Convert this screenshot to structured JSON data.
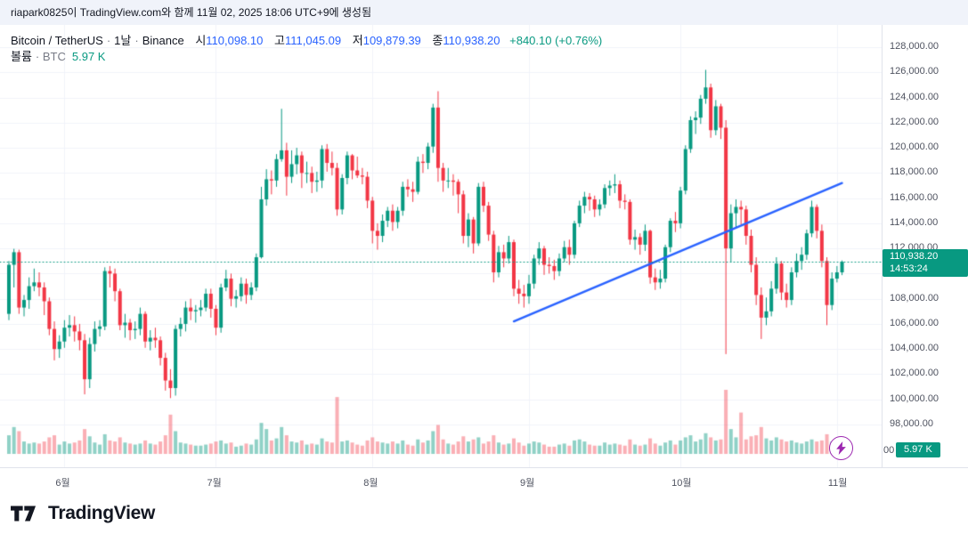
{
  "attribution": {
    "text": "riapark0825이 TradingView.com와 함께 11월 02, 2025 18:06 UTC+9에 생성됨"
  },
  "legend": {
    "symbol": "Bitcoin / TetherUS",
    "sep1": "·",
    "interval": "1날",
    "sep2": "·",
    "exchange": "Binance",
    "open_label": "시",
    "open_value": "110,098.10",
    "high_label": "고",
    "high_value": "111,045.09",
    "low_label": "저",
    "low_value": "109,879.39",
    "close_label": "종",
    "close_value": "110,938.20",
    "change": "+840.10 (+0.76%)",
    "volume_label": "볼륨",
    "volume_unit": "· BTC",
    "volume_value": "5.97 K"
  },
  "badges": {
    "price": "110,938.20",
    "countdown": "14:53:24",
    "volume": "5.97 K",
    "clipped_scale_text": "00"
  },
  "footer": {
    "brand": "TradingView"
  },
  "chart_data": {
    "type": "candlestick",
    "title": "Bitcoin / TetherUS · 1날 · Binance",
    "last_close": 110938.2,
    "last_candle": {
      "open": 110098.1,
      "high": 111045.09,
      "low": 109879.39,
      "close": 110938.2,
      "change": "+840.10 (+0.76%)",
      "volume_btc": 5.97,
      "countdown": "14:53:24"
    },
    "y_axis": {
      "min": 98000,
      "max": 128000,
      "step": 2000,
      "ticks": [
        {
          "p": 128000,
          "label": "128,000.00"
        },
        {
          "p": 126000,
          "label": "126,000.00"
        },
        {
          "p": 124000,
          "label": "124,000.00"
        },
        {
          "p": 122000,
          "label": "122,000.00"
        },
        {
          "p": 120000,
          "label": "120,000.00"
        },
        {
          "p": 118000,
          "label": "118,000.00"
        },
        {
          "p": 116000,
          "label": "116,000.00"
        },
        {
          "p": 114000,
          "label": "114,000.00"
        },
        {
          "p": 112000,
          "label": "112,000.00"
        },
        {
          "p": 110000,
          "label": "110,000.00"
        },
        {
          "p": 108000,
          "label": "108,000.00"
        },
        {
          "p": 106000,
          "label": "106,000.00"
        },
        {
          "p": 104000,
          "label": "104,000.00"
        },
        {
          "p": 102000,
          "label": "102,000.00"
        },
        {
          "p": 100000,
          "label": "100,000.00"
        },
        {
          "p": 98000,
          "label": "98,000.00"
        }
      ]
    },
    "x_axis": {
      "ticks": [
        {
          "index": 11,
          "label": "6월"
        },
        {
          "index": 41,
          "label": "7월"
        },
        {
          "index": 72,
          "label": "8월"
        },
        {
          "index": 103,
          "label": "9월"
        },
        {
          "index": 133,
          "label": "10월"
        },
        {
          "index": 164,
          "label": "11월"
        }
      ]
    },
    "trendline": {
      "from_index": 100,
      "from_price": 106200,
      "to_index": 165,
      "to_price": 117200,
      "color": "#2962ff"
    },
    "colors": {
      "up": "#089981",
      "down": "#f23645",
      "vol_up": "rgba(8,153,129,0.45)",
      "vol_down": "rgba(242,54,69,0.4)",
      "grid": "#f0f3fa",
      "trend": "#2962ff",
      "last_price_line": "#089981",
      "badge_bg": "#089981",
      "legend_value": "#2962ff",
      "change": "#089981"
    },
    "candles": [
      [
        106800,
        111000,
        106300,
        110700
      ],
      [
        110700,
        111970,
        108900,
        111700
      ],
      [
        111700,
        111900,
        106800,
        107300
      ],
      [
        107300,
        108300,
        106600,
        107900
      ],
      [
        107900,
        109700,
        107200,
        109000
      ],
      [
        109000,
        110400,
        108600,
        109300
      ],
      [
        109300,
        110100,
        108200,
        108900
      ],
      [
        108900,
        109300,
        106700,
        107800
      ],
      [
        107800,
        108100,
        105100,
        105600
      ],
      [
        105600,
        106200,
        103100,
        104000
      ],
      [
        104000,
        105100,
        103300,
        104600
      ],
      [
        104600,
        106300,
        104100,
        105700
      ],
      [
        105700,
        106700,
        105000,
        105900
      ],
      [
        105900,
        106600,
        104600,
        105400
      ],
      [
        105400,
        106000,
        103900,
        104700
      ],
      [
        104700,
        105200,
        100400,
        101600
      ],
      [
        101600,
        104900,
        100900,
        104400
      ],
      [
        104400,
        106200,
        103800,
        105600
      ],
      [
        105600,
        106300,
        105000,
        105800
      ],
      [
        105800,
        110500,
        105500,
        110200
      ],
      [
        110200,
        110600,
        108900,
        110000
      ],
      [
        110000,
        110400,
        107800,
        108600
      ],
      [
        108600,
        108800,
        105500,
        105900
      ],
      [
        105900,
        106800,
        104900,
        106100
      ],
      [
        106100,
        106400,
        104700,
        105500
      ],
      [
        105500,
        106200,
        104800,
        105600
      ],
      [
        105600,
        107300,
        105100,
        106800
      ],
      [
        106800,
        107000,
        104100,
        104600
      ],
      [
        104600,
        105500,
        103900,
        104900
      ],
      [
        104900,
        105700,
        104100,
        104700
      ],
      [
        104700,
        105000,
        102700,
        103300
      ],
      [
        103300,
        103700,
        100700,
        101500
      ],
      [
        101500,
        102400,
        100100,
        100900
      ],
      [
        100900,
        105900,
        100300,
        105600
      ],
      [
        105600,
        106500,
        105000,
        106000
      ],
      [
        106000,
        107800,
        105400,
        107300
      ],
      [
        107300,
        108000,
        106300,
        107000
      ],
      [
        107000,
        107500,
        106100,
        107100
      ],
      [
        107100,
        107900,
        106600,
        107300
      ],
      [
        107300,
        108800,
        107000,
        108400
      ],
      [
        108400,
        108800,
        106500,
        107200
      ],
      [
        107200,
        107500,
        105100,
        105700
      ],
      [
        105700,
        109200,
        105300,
        108900
      ],
      [
        108900,
        110300,
        108600,
        109600
      ],
      [
        109600,
        110000,
        107400,
        108000
      ],
      [
        108000,
        108700,
        107300,
        108200
      ],
      [
        108200,
        109700,
        107800,
        109200
      ],
      [
        109200,
        109600,
        107600,
        108300
      ],
      [
        108300,
        109300,
        107900,
        108900
      ],
      [
        108900,
        111600,
        108600,
        111300
      ],
      [
        111300,
        116900,
        111200,
        115900
      ],
      [
        115900,
        118300,
        115400,
        117500
      ],
      [
        117500,
        118200,
        116300,
        117400
      ],
      [
        117400,
        119500,
        116900,
        119100
      ],
      [
        119100,
        123100,
        118900,
        119800
      ],
      [
        119800,
        120400,
        116200,
        117700
      ],
      [
        117700,
        119800,
        117200,
        118700
      ],
      [
        118700,
        120000,
        117900,
        119400
      ],
      [
        119400,
        119700,
        116800,
        118000
      ],
      [
        118000,
        118900,
        117200,
        118000
      ],
      [
        118000,
        118500,
        116400,
        117300
      ],
      [
        117300,
        118100,
        116500,
        117400
      ],
      [
        117400,
        120200,
        116800,
        119900
      ],
      [
        119900,
        120300,
        118100,
        118800
      ],
      [
        118800,
        119700,
        117800,
        118400
      ],
      [
        118400,
        118800,
        114600,
        115100
      ],
      [
        115100,
        117900,
        114700,
        117600
      ],
      [
        117600,
        119700,
        117100,
        119400
      ],
      [
        119400,
        119500,
        117500,
        118200
      ],
      [
        118200,
        119300,
        117600,
        117800
      ],
      [
        117800,
        118400,
        117100,
        117700
      ],
      [
        117700,
        118100,
        115200,
        115800
      ],
      [
        115800,
        116100,
        112400,
        113400
      ],
      [
        113400,
        114000,
        111900,
        113000
      ],
      [
        113000,
        114700,
        112500,
        114200
      ],
      [
        114200,
        115300,
        113700,
        115000
      ],
      [
        115000,
        115500,
        113400,
        114100
      ],
      [
        114100,
        115300,
        113600,
        115000
      ],
      [
        115000,
        117300,
        114600,
        116900
      ],
      [
        116900,
        117500,
        116100,
        116700
      ],
      [
        116700,
        117300,
        115700,
        116500
      ],
      [
        116500,
        119300,
        116300,
        118900
      ],
      [
        118900,
        119500,
        118000,
        118800
      ],
      [
        118800,
        120400,
        118300,
        120100
      ],
      [
        120100,
        123500,
        119600,
        123200
      ],
      [
        123200,
        124500,
        117300,
        118400
      ],
      [
        118400,
        118800,
        116500,
        117400
      ],
      [
        117400,
        118400,
        116800,
        117400
      ],
      [
        117400,
        117900,
        116200,
        117300
      ],
      [
        117300,
        117500,
        114800,
        116300
      ],
      [
        116300,
        116600,
        112400,
        113000
      ],
      [
        113000,
        114800,
        112100,
        114300
      ],
      [
        114300,
        114500,
        111600,
        112400
      ],
      [
        112400,
        117200,
        112200,
        116900
      ],
      [
        116900,
        117300,
        114900,
        115400
      ],
      [
        115400,
        115700,
        112600,
        113100
      ],
      [
        113100,
        113400,
        109300,
        110100
      ],
      [
        110100,
        112200,
        109700,
        111700
      ],
      [
        111700,
        112300,
        110500,
        111200
      ],
      [
        111200,
        113000,
        110800,
        112500
      ],
      [
        112500,
        112700,
        108200,
        108800
      ],
      [
        108800,
        109500,
        107600,
        108400
      ],
      [
        108400,
        109100,
        107300,
        108200
      ],
      [
        108200,
        109900,
        107600,
        109200
      ],
      [
        109200,
        111500,
        108800,
        111200
      ],
      [
        111200,
        112500,
        110700,
        112000
      ],
      [
        112000,
        112200,
        109900,
        110700
      ],
      [
        110700,
        111300,
        110000,
        110600
      ],
      [
        110600,
        111100,
        109500,
        110200
      ],
      [
        110200,
        111600,
        109800,
        111200
      ],
      [
        111200,
        112600,
        110900,
        112100
      ],
      [
        112100,
        112700,
        110700,
        111500
      ],
      [
        111500,
        114200,
        111200,
        114000
      ],
      [
        114000,
        115800,
        113700,
        115400
      ],
      [
        115400,
        116500,
        114800,
        116100
      ],
      [
        116100,
        116400,
        115000,
        115900
      ],
      [
        115900,
        116200,
        114500,
        115100
      ],
      [
        115100,
        115900,
        114600,
        115500
      ],
      [
        115500,
        117100,
        115200,
        116800
      ],
      [
        116800,
        117400,
        116200,
        117000
      ],
      [
        117000,
        117900,
        116400,
        117100
      ],
      [
        117100,
        117400,
        115200,
        115800
      ],
      [
        115800,
        116300,
        115100,
        115700
      ],
      [
        115700,
        115900,
        112300,
        112700
      ],
      [
        112700,
        113500,
        111900,
        112900
      ],
      [
        112900,
        113200,
        111500,
        112300
      ],
      [
        112300,
        113900,
        111800,
        113400
      ],
      [
        113400,
        113500,
        109200,
        109700
      ],
      [
        109700,
        110400,
        108700,
        109300
      ],
      [
        109300,
        110300,
        108800,
        109600
      ],
      [
        109600,
        112300,
        109300,
        112100
      ],
      [
        112100,
        114400,
        111700,
        114200
      ],
      [
        114200,
        114900,
        113300,
        114000
      ],
      [
        114000,
        116900,
        113600,
        116600
      ],
      [
        116600,
        120200,
        116300,
        119900
      ],
      [
        119900,
        122500,
        119600,
        122200
      ],
      [
        122200,
        122900,
        121100,
        122400
      ],
      [
        122400,
        124200,
        121900,
        123900
      ],
      [
        123900,
        126200,
        123500,
        124800
      ],
      [
        124800,
        125100,
        120800,
        121400
      ],
      [
        121400,
        123800,
        121000,
        123300
      ],
      [
        123300,
        123500,
        120700,
        121600
      ],
      [
        121600,
        122200,
        103600,
        112000
      ],
      [
        112000,
        115500,
        110900,
        114800
      ],
      [
        114800,
        115900,
        113700,
        115300
      ],
      [
        115300,
        115800,
        113900,
        115100
      ],
      [
        115100,
        115400,
        112300,
        113000
      ],
      [
        113000,
        113500,
        110100,
        110700
      ],
      [
        110700,
        111300,
        107500,
        108300
      ],
      [
        108300,
        108900,
        104800,
        106500
      ],
      [
        106500,
        108100,
        105900,
        107000
      ],
      [
        107000,
        109400,
        106600,
        108800
      ],
      [
        108800,
        111300,
        108400,
        110800
      ],
      [
        110800,
        111000,
        107900,
        108500
      ],
      [
        108500,
        109200,
        107300,
        107900
      ],
      [
        107900,
        110500,
        107500,
        110100
      ],
      [
        110100,
        111600,
        109700,
        111000
      ],
      [
        111000,
        112100,
        110300,
        111500
      ],
      [
        111500,
        113500,
        111100,
        113200
      ],
      [
        113200,
        115800,
        112900,
        115300
      ],
      [
        115300,
        115500,
        112800,
        113400
      ],
      [
        113400,
        113900,
        110500,
        111000
      ],
      [
        111000,
        111300,
        105900,
        107500
      ],
      [
        107500,
        110100,
        107100,
        109600
      ],
      [
        109600,
        110600,
        109300,
        110098
      ],
      [
        110098,
        111045,
        109879,
        110938
      ]
    ],
    "volumes": [
      18,
      26,
      22,
      12,
      10,
      11,
      10,
      12,
      16,
      18,
      9,
      12,
      10,
      11,
      13,
      24,
      17,
      11,
      9,
      19,
      13,
      12,
      16,
      11,
      10,
      9,
      10,
      13,
      10,
      9,
      12,
      18,
      38,
      22,
      11,
      10,
      9,
      8,
      8,
      9,
      10,
      12,
      13,
      10,
      11,
      7,
      8,
      10,
      9,
      14,
      30,
      24,
      13,
      15,
      26,
      18,
      12,
      11,
      13,
      9,
      10,
      9,
      15,
      12,
      11,
      55,
      12,
      13,
      11,
      9,
      8,
      13,
      16,
      12,
      11,
      10,
      12,
      10,
      13,
      9,
      8,
      14,
      11,
      13,
      22,
      28,
      14,
      10,
      9,
      12,
      17,
      12,
      14,
      16,
      10,
      12,
      18,
      11,
      9,
      10,
      15,
      11,
      8,
      10,
      12,
      11,
      9,
      7,
      7,
      9,
      10,
      8,
      13,
      14,
      12,
      9,
      8,
      8,
      11,
      9,
      10,
      9,
      8,
      14,
      9,
      8,
      9,
      15,
      10,
      8,
      11,
      13,
      9,
      13,
      16,
      18,
      12,
      14,
      20,
      16,
      13,
      14,
      62,
      24,
      16,
      40,
      14,
      17,
      18,
      26,
      15,
      13,
      16,
      14,
      12,
      13,
      11,
      10,
      12,
      14,
      12,
      13,
      19,
      12,
      8,
      5.97
    ]
  }
}
